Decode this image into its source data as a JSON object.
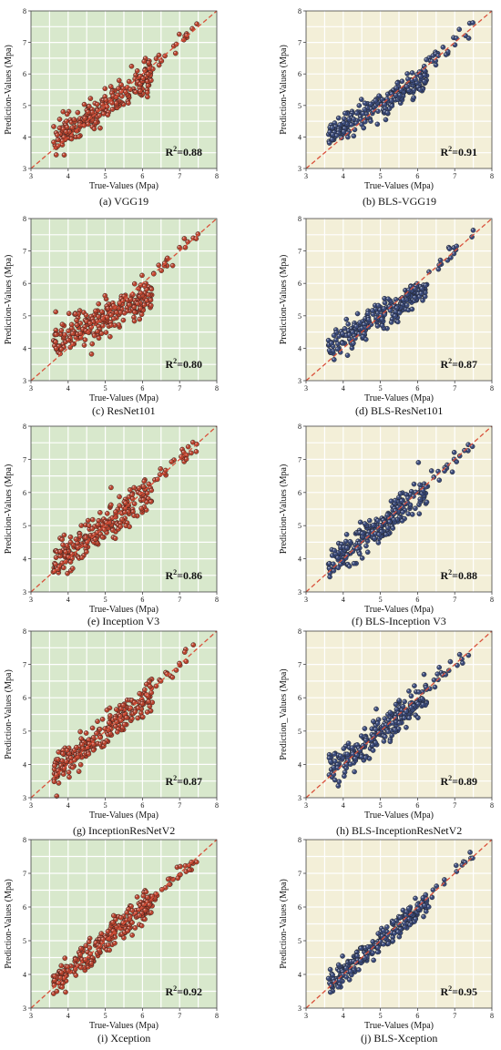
{
  "colors": {
    "green_bg": "#d8e8cc",
    "yellow_bg": "#f3efd8",
    "grid": "#ffffff",
    "diag": "#d9503a",
    "red_point": "#b8432e",
    "blue_point": "#3a4a7a"
  },
  "chart_data": [
    {
      "id": "a",
      "type": "scatter",
      "caption": "(a) VGG19",
      "r2_text": "R2=0.88",
      "r2_base": "R",
      "r2_sup": "2",
      "r2_value": "=0.88",
      "xlabel": "True-Values (Mpa)",
      "ylabel": "Prediction-Values (Mpa)",
      "xlim": [
        3,
        8
      ],
      "ylim": [
        3,
        8
      ],
      "xticks": [
        "3",
        "4",
        "5",
        "6",
        "7",
        "8"
      ],
      "yticks": [
        "3",
        "4",
        "5",
        "6",
        "7",
        "8"
      ],
      "background": "green",
      "point_color": "red",
      "grid": true,
      "series": [
        {
          "reference_line": "y = x",
          "spread": 0.26,
          "compress": 0.8
        }
      ]
    },
    {
      "id": "b",
      "type": "scatter",
      "caption": "(b) BLS-VGG19",
      "r2_text": "R2=0.91",
      "r2_base": "R",
      "r2_sup": "2",
      "r2_value": "=0.91",
      "xlabel": "True-Values (Mpa)",
      "ylabel": "Prediction-Values (Mpa)",
      "xlim": [
        3,
        8
      ],
      "ylim": [
        3,
        8
      ],
      "xticks": [
        "3",
        "4",
        "5",
        "6",
        "7",
        "8"
      ],
      "yticks": [
        "3",
        "4",
        "5",
        "6",
        "7",
        "8"
      ],
      "background": "yellow",
      "point_color": "blue",
      "grid": true,
      "series": [
        {
          "reference_line": "y = x",
          "spread": 0.2,
          "compress": 0.7
        }
      ]
    },
    {
      "id": "c",
      "type": "scatter",
      "caption": "(c) ResNet101",
      "r2_text": "R2=0.80",
      "r2_base": "R",
      "r2_sup": "2",
      "r2_value": "=0.80",
      "xlabel": "True-Values (Mpa)",
      "ylabel": "Prediction-Values (Mpa)",
      "xlim": [
        3,
        8
      ],
      "ylim": [
        3,
        8
      ],
      "xticks": [
        "3",
        "4",
        "5",
        "6",
        "7",
        "8"
      ],
      "yticks": [
        "3",
        "4",
        "5",
        "6",
        "7",
        "8"
      ],
      "background": "green",
      "point_color": "red",
      "grid": true,
      "series": [
        {
          "reference_line": "y = x",
          "spread": 0.28,
          "compress": 0.55
        }
      ]
    },
    {
      "id": "d",
      "type": "scatter",
      "caption": "(d) BLS-ResNet101",
      "r2_text": "R2=0.87",
      "r2_base": "R",
      "r2_sup": "2",
      "r2_value": "=0.87",
      "xlabel": "True-Values (Mpa)",
      "ylabel": "Prediction-Values (Mpa)",
      "xlim": [
        3,
        8
      ],
      "ylim": [
        3,
        8
      ],
      "xticks": [
        "3",
        "4",
        "5",
        "6",
        "7",
        "8"
      ],
      "yticks": [
        "3",
        "4",
        "5",
        "6",
        "7",
        "8"
      ],
      "background": "yellow",
      "point_color": "blue",
      "grid": true,
      "series": [
        {
          "reference_line": "y = x",
          "spread": 0.22,
          "compress": 0.7
        }
      ]
    },
    {
      "id": "e",
      "type": "scatter",
      "caption": "(e) Inception V3",
      "r2_text": "R2=0.86",
      "r2_base": "R",
      "r2_sup": "2",
      "r2_value": "=0.86",
      "xlabel": "True-Values (Mpa)",
      "ylabel": "Prediction-Values (Mpa)",
      "xlim": [
        3,
        8
      ],
      "ylim": [
        3,
        8
      ],
      "xticks": [
        "3",
        "4",
        "5",
        "6",
        "7",
        "8"
      ],
      "yticks": [
        "3",
        "4",
        "5",
        "6",
        "7",
        "8"
      ],
      "background": "green",
      "point_color": "red",
      "grid": true,
      "series": [
        {
          "reference_line": "y = x",
          "spread": 0.26,
          "compress": 0.85
        }
      ]
    },
    {
      "id": "f",
      "type": "scatter",
      "caption": "(f) BLS-Inception V3",
      "r2_text": "R2=0.88",
      "r2_base": "R",
      "r2_sup": "2",
      "r2_value": "=0.88",
      "xlabel": "True-Values (Mpa)",
      "ylabel": "Prediction-Values (Mpa)",
      "xlim": [
        3,
        8
      ],
      "ylim": [
        3,
        8
      ],
      "xticks": [
        "3",
        "4",
        "5",
        "6",
        "7",
        "8"
      ],
      "yticks": [
        "3",
        "4",
        "5",
        "6",
        "7",
        "8"
      ],
      "background": "yellow",
      "point_color": "blue",
      "grid": true,
      "series": [
        {
          "reference_line": "y = x",
          "spread": 0.25,
          "compress": 0.88
        }
      ]
    },
    {
      "id": "g",
      "type": "scatter",
      "caption": "(g) InceptionResNetV2",
      "r2_text": "R2=0.87",
      "r2_base": "R",
      "r2_sup": "2",
      "r2_value": "=0.87",
      "xlabel": "True-Values (Mpa)",
      "ylabel": "Prediction-Values (Mpa)",
      "xlim": [
        3,
        8
      ],
      "ylim": [
        3,
        8
      ],
      "xticks": [
        "3",
        "4",
        "5",
        "6",
        "7",
        "8"
      ],
      "yticks": [
        "3",
        "4",
        "5",
        "6",
        "7",
        "8"
      ],
      "background": "green",
      "point_color": "red",
      "grid": true,
      "series": [
        {
          "reference_line": "y = x",
          "spread": 0.25,
          "compress": 0.88
        }
      ]
    },
    {
      "id": "h",
      "type": "scatter",
      "caption": "(h) BLS-InceptionResNetV2",
      "r2_text": "R2=0.89",
      "r2_base": "R",
      "r2_sup": "2",
      "r2_value": "=0.89",
      "xlabel": "True-Values (Mpa)",
      "ylabel": "Prediction_Values (Mpa)",
      "xlim": [
        3,
        8
      ],
      "ylim": [
        3,
        8
      ],
      "xticks": [
        "3",
        "4",
        "5",
        "6",
        "7",
        "8"
      ],
      "yticks": [
        "3",
        "4",
        "5",
        "6",
        "7",
        "8"
      ],
      "background": "yellow",
      "point_color": "blue",
      "grid": true,
      "series": [
        {
          "reference_line": "y = x",
          "spread": 0.24,
          "compress": 0.88
        }
      ]
    },
    {
      "id": "i",
      "type": "scatter",
      "caption": "(i) Xception",
      "r2_text": "R2=0.92",
      "r2_base": "R",
      "r2_sup": "2",
      "r2_value": "=0.92",
      "xlabel": "True-Values (Mpa)",
      "ylabel": "Prediction-Values (Mpa)",
      "xlim": [
        3,
        8
      ],
      "ylim": [
        3,
        8
      ],
      "xticks": [
        "3",
        "4",
        "5",
        "6",
        "7",
        "8"
      ],
      "yticks": [
        "3",
        "4",
        "5",
        "6",
        "7",
        "8"
      ],
      "background": "green",
      "point_color": "red",
      "grid": true,
      "series": [
        {
          "reference_line": "y = x",
          "spread": 0.22,
          "compress": 0.9
        }
      ]
    },
    {
      "id": "j",
      "type": "scatter",
      "caption": "(j) BLS-Xception",
      "r2_text": "R2=0.95",
      "r2_base": "R",
      "r2_sup": "2",
      "r2_value": "=0.95",
      "xlabel": "True-Values (Mpa)",
      "ylabel": "Prediction-Values (Mpa)",
      "xlim": [
        3,
        8
      ],
      "ylim": [
        3,
        8
      ],
      "xticks": [
        "3",
        "4",
        "5",
        "6",
        "7",
        "8"
      ],
      "yticks": [
        "3",
        "4",
        "5",
        "6",
        "7",
        "8"
      ],
      "background": "yellow",
      "point_color": "blue",
      "grid": true,
      "series": [
        {
          "reference_line": "y = x",
          "spread": 0.17,
          "compress": 0.93
        }
      ]
    }
  ]
}
